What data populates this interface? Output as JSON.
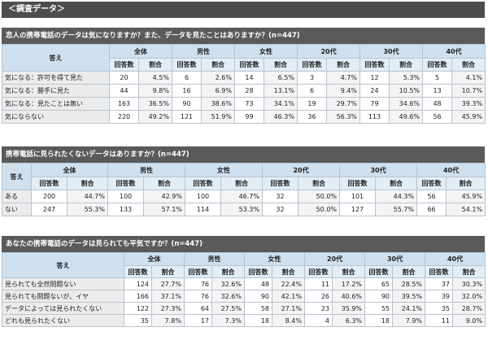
{
  "page_header": "＜調査データ＞",
  "groups": [
    "全体",
    "男性",
    "女性",
    "20代",
    "30代",
    "40代"
  ],
  "sub_headers": [
    "回答数",
    "割合"
  ],
  "answer_label": "答え",
  "sections": [
    {
      "title": "恋人の携帯電話のデータは気になりますか？また、データを見たことはありますか？(n=447)",
      "rows": [
        {
          "label": "気になる：許可を得て見た",
          "values": [
            "20",
            "4.5%",
            "6",
            "2.6%",
            "14",
            "6.5%",
            "3",
            "4.7%",
            "12",
            "5.3%",
            "5",
            "4.1%"
          ]
        },
        {
          "label": "気になる：勝手に見た",
          "values": [
            "44",
            "9.8%",
            "16",
            "6.9%",
            "28",
            "13.1%",
            "6",
            "9.4%",
            "24",
            "10.5%",
            "13",
            "10.7%"
          ]
        },
        {
          "label": "気になる：見たことは無い",
          "values": [
            "163",
            "36.5%",
            "90",
            "38.6%",
            "73",
            "34.1%",
            "19",
            "29.7%",
            "79",
            "34.6%",
            "48",
            "39.3%"
          ]
        },
        {
          "label": "気にならない",
          "values": [
            "220",
            "49.2%",
            "121",
            "51.9%",
            "99",
            "46.3%",
            "36",
            "56.3%",
            "113",
            "49.6%",
            "56",
            "45.9%"
          ]
        }
      ]
    },
    {
      "title": "携帯電話に見られたくないデータはありますか？(n=447)",
      "rows": [
        {
          "label": "ある",
          "values": [
            "200",
            "44.7%",
            "100",
            "42.9%",
            "100",
            "46.7%",
            "32",
            "50.0%",
            "101",
            "44.3%",
            "56",
            "45.9%"
          ]
        },
        {
          "label": "ない",
          "values": [
            "247",
            "55.3%",
            "133",
            "57.1%",
            "114",
            "53.3%",
            "32",
            "50.0%",
            "127",
            "55.7%",
            "66",
            "54.1%"
          ]
        }
      ]
    },
    {
      "title": "あなたの携帯電話のデータは見られても平気ですか？(n=447)",
      "rows": [
        {
          "label": "見られても全然問題ない",
          "values": [
            "124",
            "27.7%",
            "76",
            "32.6%",
            "48",
            "22.4%",
            "11",
            "17.2%",
            "65",
            "28.5%",
            "37",
            "30.3%"
          ]
        },
        {
          "label": "見られても問題ないが、イヤ",
          "values": [
            "166",
            "37.1%",
            "76",
            "32.6%",
            "90",
            "42.1%",
            "26",
            "40.6%",
            "90",
            "39.5%",
            "39",
            "32.0%"
          ]
        },
        {
          "label": "データによっては見られたくない",
          "values": [
            "122",
            "27.3%",
            "64",
            "27.5%",
            "58",
            "27.1%",
            "23",
            "35.9%",
            "55",
            "24.1%",
            "35",
            "28.7%"
          ]
        },
        {
          "label": "どれも見られたくない",
          "values": [
            "35",
            "7.8%",
            "17",
            "7.3%",
            "18",
            "8.4%",
            "4",
            "6.3%",
            "18",
            "7.9%",
            "11",
            "9.0%"
          ]
        }
      ]
    }
  ]
}
